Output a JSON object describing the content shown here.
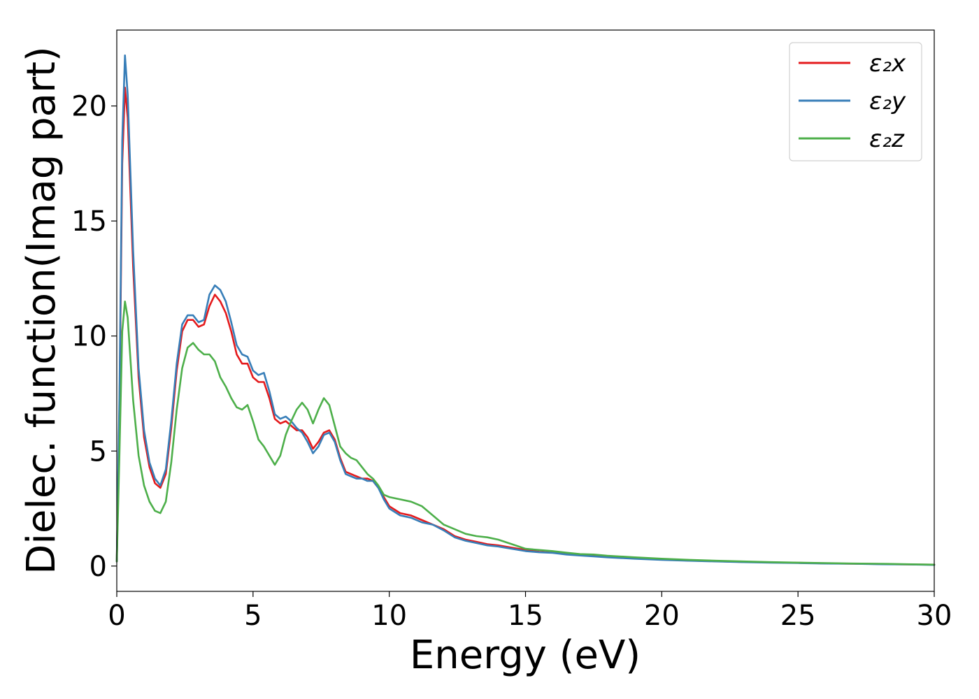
{
  "chart_data": {
    "type": "line",
    "title": "",
    "xlabel": "Energy (eV)",
    "ylabel": "Dielec. function(Imag part)",
    "xlim": [
      0,
      30
    ],
    "ylim": [
      -1.1,
      23.3
    ],
    "xticks": [
      0,
      5,
      10,
      15,
      20,
      25,
      30
    ],
    "yticks": [
      0,
      5,
      10,
      15,
      20
    ],
    "grid": false,
    "legend_position": "top-right",
    "series": [
      {
        "name": "ε₂x",
        "color": "#e41a1c",
        "x": [
          0,
          0.1,
          0.2,
          0.3,
          0.4,
          0.6,
          0.8,
          1.0,
          1.2,
          1.4,
          1.6,
          1.8,
          2.0,
          2.2,
          2.4,
          2.6,
          2.8,
          3.0,
          3.2,
          3.4,
          3.6,
          3.8,
          4.0,
          4.2,
          4.4,
          4.6,
          4.8,
          5.0,
          5.2,
          5.4,
          5.6,
          5.8,
          6.0,
          6.2,
          6.4,
          6.6,
          6.8,
          7.0,
          7.2,
          7.4,
          7.6,
          7.8,
          8.0,
          8.2,
          8.4,
          8.6,
          8.8,
          9.0,
          9.2,
          9.4,
          9.6,
          9.8,
          10.0,
          10.4,
          10.8,
          11.2,
          11.6,
          12.0,
          12.4,
          12.8,
          13.2,
          13.6,
          14.0,
          14.5,
          15.0,
          15.5,
          16.0,
          16.5,
          17.0,
          17.5,
          18.0,
          19.0,
          20.0,
          21.0,
          22.0,
          23.0,
          24.0,
          25.0,
          26.0,
          27.0,
          28.0,
          29.0,
          30.0
        ],
        "y": [
          0.2,
          7.0,
          17.5,
          20.8,
          19.5,
          13.0,
          8.2,
          5.6,
          4.3,
          3.6,
          3.4,
          4.0,
          6.0,
          8.5,
          10.2,
          10.7,
          10.7,
          10.4,
          10.5,
          11.3,
          11.8,
          11.5,
          11.0,
          10.2,
          9.2,
          8.8,
          8.8,
          8.2,
          8.0,
          8.0,
          7.3,
          6.4,
          6.2,
          6.3,
          6.1,
          5.9,
          5.9,
          5.6,
          5.1,
          5.4,
          5.8,
          5.9,
          5.5,
          4.7,
          4.1,
          4.0,
          3.9,
          3.8,
          3.8,
          3.7,
          3.4,
          3.0,
          2.6,
          2.3,
          2.2,
          2.0,
          1.8,
          1.6,
          1.3,
          1.15,
          1.05,
          0.95,
          0.9,
          0.8,
          0.7,
          0.62,
          0.58,
          0.52,
          0.48,
          0.44,
          0.4,
          0.33,
          0.28,
          0.24,
          0.21,
          0.18,
          0.16,
          0.14,
          0.12,
          0.1,
          0.09,
          0.07,
          0.06
        ]
      },
      {
        "name": "ε₂y",
        "color": "#377eb8",
        "x": [
          0,
          0.1,
          0.2,
          0.3,
          0.4,
          0.6,
          0.8,
          1.0,
          1.2,
          1.4,
          1.6,
          1.8,
          2.0,
          2.2,
          2.4,
          2.6,
          2.8,
          3.0,
          3.2,
          3.4,
          3.6,
          3.8,
          4.0,
          4.2,
          4.4,
          4.6,
          4.8,
          5.0,
          5.2,
          5.4,
          5.6,
          5.8,
          6.0,
          6.2,
          6.4,
          6.6,
          6.8,
          7.0,
          7.2,
          7.4,
          7.6,
          7.8,
          8.0,
          8.2,
          8.4,
          8.6,
          8.8,
          9.0,
          9.2,
          9.4,
          9.6,
          9.8,
          10.0,
          10.4,
          10.8,
          11.2,
          11.6,
          12.0,
          12.4,
          12.8,
          13.2,
          13.6,
          14.0,
          14.5,
          15.0,
          15.5,
          16.0,
          16.5,
          17.0,
          17.5,
          18.0,
          19.0,
          20.0,
          21.0,
          22.0,
          23.0,
          24.0,
          25.0,
          26.0,
          27.0,
          28.0,
          29.0,
          30.0
        ],
        "y": [
          0.2,
          7.5,
          18.5,
          22.2,
          20.5,
          13.7,
          8.6,
          5.9,
          4.5,
          3.8,
          3.5,
          4.2,
          6.3,
          8.8,
          10.5,
          10.9,
          10.9,
          10.6,
          10.7,
          11.8,
          12.2,
          12.0,
          11.5,
          10.6,
          9.6,
          9.2,
          9.1,
          8.5,
          8.3,
          8.4,
          7.6,
          6.6,
          6.4,
          6.5,
          6.3,
          6.0,
          5.8,
          5.4,
          4.9,
          5.2,
          5.7,
          5.8,
          5.4,
          4.6,
          4.0,
          3.9,
          3.8,
          3.8,
          3.7,
          3.7,
          3.4,
          2.9,
          2.5,
          2.2,
          2.1,
          1.9,
          1.8,
          1.55,
          1.25,
          1.1,
          1.0,
          0.9,
          0.85,
          0.75,
          0.65,
          0.6,
          0.57,
          0.5,
          0.46,
          0.42,
          0.38,
          0.32,
          0.27,
          0.23,
          0.2,
          0.17,
          0.15,
          0.13,
          0.11,
          0.1,
          0.08,
          0.07,
          0.05
        ]
      },
      {
        "name": "ε₂z",
        "color": "#4daf4a",
        "x": [
          0,
          0.1,
          0.2,
          0.3,
          0.4,
          0.6,
          0.8,
          1.0,
          1.2,
          1.4,
          1.6,
          1.8,
          2.0,
          2.2,
          2.4,
          2.6,
          2.8,
          3.0,
          3.2,
          3.4,
          3.6,
          3.8,
          4.0,
          4.2,
          4.4,
          4.6,
          4.8,
          5.0,
          5.2,
          5.4,
          5.6,
          5.8,
          6.0,
          6.2,
          6.4,
          6.6,
          6.8,
          7.0,
          7.2,
          7.4,
          7.6,
          7.8,
          8.0,
          8.2,
          8.4,
          8.6,
          8.8,
          9.0,
          9.2,
          9.4,
          9.6,
          9.8,
          10.0,
          10.4,
          10.8,
          11.2,
          11.6,
          12.0,
          12.4,
          12.8,
          13.2,
          13.6,
          14.0,
          14.5,
          15.0,
          15.5,
          16.0,
          16.5,
          17.0,
          17.5,
          18.0,
          19.0,
          20.0,
          21.0,
          22.0,
          23.0,
          24.0,
          25.0,
          26.0,
          27.0,
          28.0,
          29.0,
          30.0
        ],
        "y": [
          0.2,
          5.0,
          10.2,
          11.5,
          10.8,
          7.2,
          4.8,
          3.5,
          2.8,
          2.4,
          2.3,
          2.8,
          4.5,
          6.8,
          8.6,
          9.5,
          9.7,
          9.4,
          9.2,
          9.2,
          8.9,
          8.2,
          7.8,
          7.3,
          6.9,
          6.8,
          7.0,
          6.3,
          5.5,
          5.2,
          4.8,
          4.4,
          4.8,
          5.7,
          6.3,
          6.8,
          7.1,
          6.8,
          6.2,
          6.8,
          7.3,
          7.0,
          6.1,
          5.2,
          4.9,
          4.7,
          4.6,
          4.3,
          4.0,
          3.8,
          3.5,
          3.1,
          3.0,
          2.9,
          2.8,
          2.6,
          2.2,
          1.8,
          1.6,
          1.4,
          1.3,
          1.25,
          1.15,
          0.95,
          0.75,
          0.7,
          0.65,
          0.58,
          0.52,
          0.5,
          0.45,
          0.38,
          0.32,
          0.27,
          0.23,
          0.2,
          0.17,
          0.15,
          0.13,
          0.11,
          0.1,
          0.08,
          0.06
        ]
      }
    ]
  }
}
